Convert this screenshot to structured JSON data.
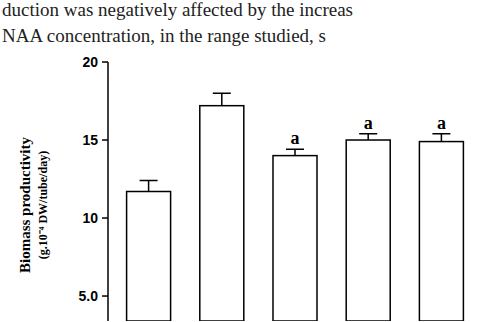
{
  "page_text": {
    "lines": [
      "duction was negatively affected by the increas",
      "NAA concentration, in the range studied, s"
    ]
  },
  "chart_data": {
    "type": "bar",
    "ylabel": [
      "Biomass productivity",
      "(g.10⁻⁴ DW/tube/day)"
    ],
    "categories": [
      null,
      null,
      null,
      null,
      null
    ],
    "values": [
      11.7,
      17.2,
      14.0,
      15.0,
      14.9
    ],
    "errors": [
      0.7,
      0.8,
      0.4,
      0.4,
      0.5
    ],
    "letters": [
      null,
      null,
      "a",
      "a",
      "a"
    ],
    "color": "#ffffff",
    "ylim": [
      3.4,
      20
    ],
    "yticks": [
      {
        "value": 5,
        "label": "5.0"
      },
      10,
      15,
      20
    ],
    "tick_labels": "y",
    "grid": false
  }
}
